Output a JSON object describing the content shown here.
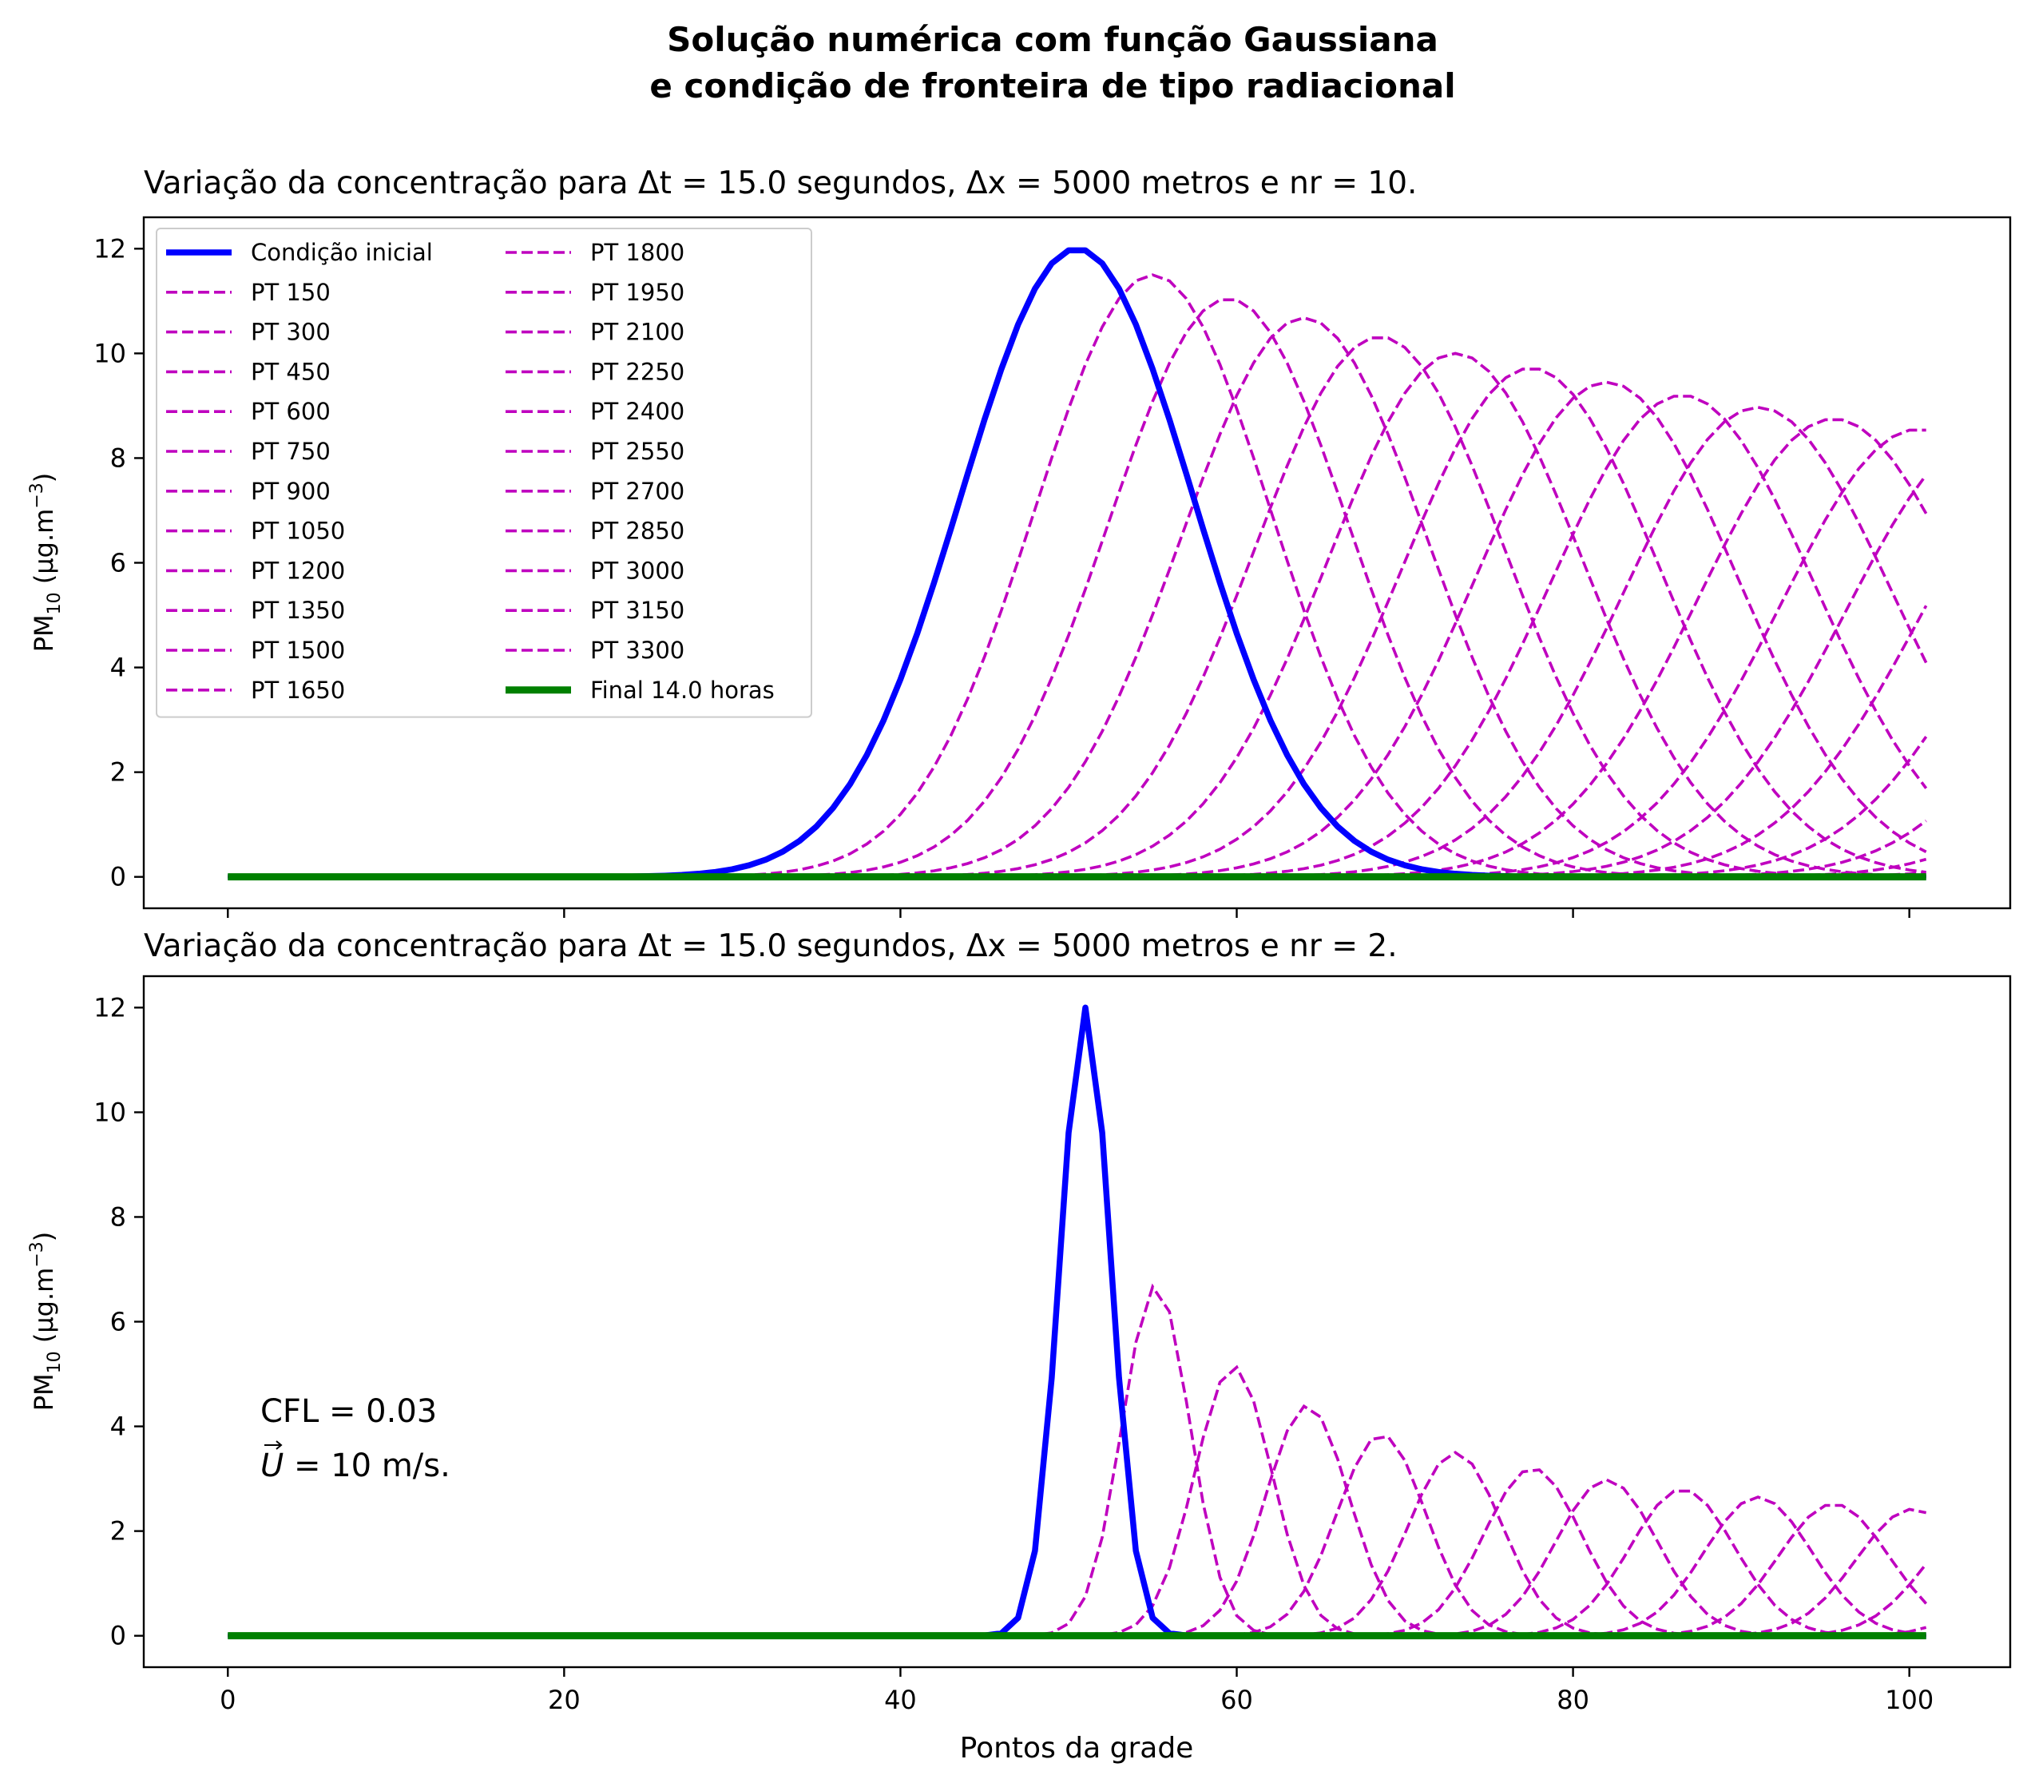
{
  "figure": {
    "title_line1": "Solução numérica com função Gaussiana",
    "title_line2": "e condição de fronteira de tipo radiacional",
    "xlabel": "Pontos da grade"
  },
  "colors": {
    "initial": "#0000ff",
    "intermediate": "#bf00bf",
    "final": "#008000",
    "axes": "#000000"
  },
  "chart_data": [
    {
      "type": "line",
      "title": "Variação da concentração para Δt = 15.0 segundos, Δx = 5000 metros e nr = 10.",
      "ylabel": "PM10 (µg.m⁻³)",
      "ylabel_main": "PM",
      "ylabel_sub": "10",
      "ylabel_rest": " (μg.m",
      "ylabel_sup": "−3",
      "ylabel_close": ")",
      "xlim": [
        -5,
        106
      ],
      "ylim": [
        -0.6,
        12.6
      ],
      "xticks": [
        0,
        20,
        40,
        60,
        80,
        100
      ],
      "xtick_labels_visible": false,
      "yticks": [
        0,
        2,
        4,
        6,
        8,
        10,
        12
      ],
      "grid": false,
      "legend": {
        "placement": "upper-left",
        "columns": 2
      },
      "x_range": [
        0,
        101
      ],
      "initial": {
        "name": "Condição inicial",
        "center": 50.5,
        "amplitude": 12.0,
        "sigma": 6.9
      },
      "series": [
        {
          "name": "PT 150",
          "center": 55.0,
          "amplitude": 11.5
        },
        {
          "name": "PT 300",
          "center": 59.5,
          "amplitude": 11.05
        },
        {
          "name": "PT 450",
          "center": 64.0,
          "amplitude": 10.68
        },
        {
          "name": "PT 600",
          "center": 68.5,
          "amplitude": 10.32
        },
        {
          "name": "PT 750",
          "center": 73.0,
          "amplitude": 10.0
        },
        {
          "name": "PT 900",
          "center": 77.5,
          "amplitude": 9.72
        },
        {
          "name": "PT 1050",
          "center": 82.0,
          "amplitude": 9.45
        },
        {
          "name": "PT 1200",
          "center": 86.5,
          "amplitude": 9.2
        },
        {
          "name": "PT 1350",
          "center": 91.0,
          "amplitude": 8.97
        },
        {
          "name": "PT 1500",
          "center": 95.5,
          "amplitude": 8.75
        },
        {
          "name": "PT 1650",
          "center": 100.5,
          "amplitude": 8.55
        },
        {
          "name": "PT 1800",
          "center": 104.5,
          "amplitude": 8.4
        },
        {
          "name": "PT 1950",
          "center": 109.0,
          "amplitude": 8.2
        },
        {
          "name": "PT 2100",
          "center": 113.5,
          "amplitude": 8.05
        },
        {
          "name": "PT 2250",
          "center": 118.0,
          "amplitude": 7.9
        },
        {
          "name": "PT 2400",
          "center": 122.5,
          "amplitude": 7.75
        },
        {
          "name": "PT 2550",
          "center": 127.0,
          "amplitude": 7.6
        },
        {
          "name": "PT 2700",
          "center": 131.5,
          "amplitude": 7.45
        },
        {
          "name": "PT 2850",
          "center": 136.0,
          "amplitude": 7.3
        },
        {
          "name": "PT 3000",
          "center": 140.5,
          "amplitude": 7.2
        },
        {
          "name": "PT 3150",
          "center": 145.0,
          "amplitude": 7.05
        },
        {
          "name": "PT 3300",
          "center": 149.5,
          "amplitude": 6.95
        }
      ],
      "final": {
        "name": "Final 14.0 horas",
        "value": 0.0
      }
    },
    {
      "type": "line",
      "title": "Variação da concentração para Δt = 15.0 segundos, Δx = 5000 metros e nr = 2.",
      "ylabel_main": "PM",
      "ylabel_sub": "10",
      "ylabel_rest": " (μg.m",
      "ylabel_sup": "−3",
      "ylabel_close": ")",
      "xlim": [
        -5,
        106
      ],
      "ylim": [
        -0.6,
        12.6
      ],
      "xticks": [
        0,
        20,
        40,
        60,
        80,
        100
      ],
      "xtick_labels_visible": true,
      "yticks": [
        0,
        2,
        4,
        6,
        8,
        10,
        12
      ],
      "grid": false,
      "legend": null,
      "annotation_line1": "CFL = 0.03",
      "annotation_line2_symbol": "U",
      "annotation_line2_rest": " = 10 m/s.",
      "x_range": [
        0,
        101
      ],
      "initial": {
        "name": "Condição inicial",
        "center": 51.0,
        "amplitude": 12.0,
        "sigma": 1.5
      },
      "series": [
        {
          "name": "PT 150",
          "center": 55.2,
          "amplitude": 6.7
        },
        {
          "name": "PT 300",
          "center": 59.8,
          "amplitude": 5.15
        },
        {
          "name": "PT 450",
          "center": 64.2,
          "amplitude": 4.4
        },
        {
          "name": "PT 600",
          "center": 68.6,
          "amplitude": 3.85
        },
        {
          "name": "PT 750",
          "center": 73.0,
          "amplitude": 3.5
        },
        {
          "name": "PT 900",
          "center": 77.6,
          "amplitude": 3.2
        },
        {
          "name": "PT 1050",
          "center": 82.0,
          "amplitude": 2.98
        },
        {
          "name": "PT 1200",
          "center": 86.5,
          "amplitude": 2.8
        },
        {
          "name": "PT 1350",
          "center": 91.0,
          "amplitude": 2.65
        },
        {
          "name": "PT 1500",
          "center": 95.5,
          "amplitude": 2.52
        },
        {
          "name": "PT 1650",
          "center": 100.2,
          "amplitude": 2.42
        },
        {
          "name": "PT 1800",
          "center": 104.5,
          "amplitude": 2.32
        },
        {
          "name": "PT 1950",
          "center": 109.0,
          "amplitude": 2.22
        },
        {
          "name": "PT 2100",
          "center": 113.5,
          "amplitude": 2.14
        },
        {
          "name": "PT 2250",
          "center": 118.0,
          "amplitude": 2.06
        },
        {
          "name": "PT 2400",
          "center": 122.5,
          "amplitude": 1.99
        },
        {
          "name": "PT 2550",
          "center": 127.0,
          "amplitude": 1.93
        },
        {
          "name": "PT 2700",
          "center": 131.5,
          "amplitude": 1.87
        },
        {
          "name": "PT 2850",
          "center": 136.0,
          "amplitude": 1.82
        },
        {
          "name": "PT 3000",
          "center": 140.5,
          "amplitude": 1.77
        },
        {
          "name": "PT 3150",
          "center": 145.0,
          "amplitude": 1.72
        },
        {
          "name": "PT 3300",
          "center": 149.5,
          "amplitude": 1.68
        }
      ],
      "final": {
        "name": "Final 14.0 horas",
        "value": 0.0
      }
    }
  ]
}
